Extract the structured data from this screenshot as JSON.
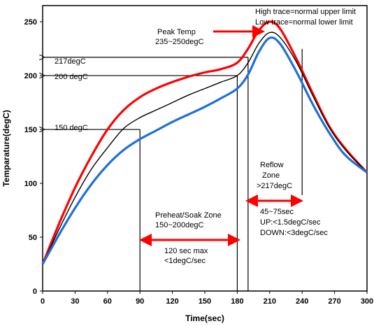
{
  "chart_data": {
    "type": "line",
    "xlabel": "Time(sec)",
    "ylabel": "Temparature(degC)",
    "xlim": [
      0,
      300
    ],
    "ylim": [
      0,
      265
    ],
    "xticks": [
      0,
      30,
      60,
      90,
      120,
      150,
      180,
      210,
      240,
      270,
      300
    ],
    "yticks": [
      0,
      50,
      100,
      150,
      200,
      250
    ],
    "grid": false,
    "series": [
      {
        "color": "#ff0000",
        "x": [
          0,
          15,
          30,
          45,
          60,
          75,
          90,
          105,
          120,
          135,
          150,
          165,
          180,
          190,
          200,
          210,
          220,
          235,
          250,
          265,
          280,
          300
        ],
        "y": [
          25,
          62,
          96,
          125,
          150,
          168,
          180,
          188,
          194,
          199,
          203,
          206,
          212,
          225,
          242,
          250,
          243,
          215,
          183,
          153,
          132,
          110
        ]
      },
      {
        "color": "#000000",
        "x": [
          0,
          15,
          30,
          45,
          60,
          75,
          90,
          105,
          120,
          135,
          150,
          165,
          180,
          190,
          200,
          210,
          220,
          235,
          250,
          265,
          280,
          300
        ],
        "y": [
          25,
          57,
          87,
          113,
          133,
          151,
          161,
          168,
          175,
          182,
          188,
          194,
          200,
          212,
          230,
          240,
          235,
          212,
          181,
          152,
          131,
          110
        ]
      },
      {
        "color": "#1f6fd8",
        "x": [
          0,
          15,
          30,
          45,
          60,
          75,
          90,
          105,
          120,
          135,
          150,
          165,
          180,
          190,
          200,
          210,
          220,
          235,
          250,
          265,
          280,
          300
        ],
        "y": [
          25,
          52,
          77,
          99,
          117,
          131,
          141,
          149,
          157,
          164,
          171,
          179,
          188,
          201,
          222,
          235,
          229,
          203,
          173,
          147,
          126,
          110
        ]
      }
    ],
    "annotations": {
      "legend_line1": "High trace=normal upper limit",
      "legend_line2": "Low trace=normal lower limit",
      "peak_line1": "Peak Temp",
      "peak_line2": "235~250degC",
      "t217": "217degC",
      "t200": "200 degC",
      "t150": "150 degC",
      "reflow_line1": "Reflow",
      "reflow_line2": "Zone",
      "reflow_line3": ">217degC",
      "reflow_time": "45~75sec",
      "reflow_up": "UP:<1.5degC/sec",
      "reflow_down": "DOWN:<3degC/sec",
      "preheat_line1": "Preheat/Soak  Zone",
      "preheat_line2": "150~200degC",
      "preheat_time": "120 sec max",
      "preheat_rate": "<1degC/sec"
    },
    "reference_lines": {
      "soak_start_x": 90,
      "soak_end_x": 180,
      "reflow_start_x": 190,
      "reflow_end_x": 240,
      "level_150": 150,
      "level_200": 200,
      "level_217": 217
    }
  }
}
